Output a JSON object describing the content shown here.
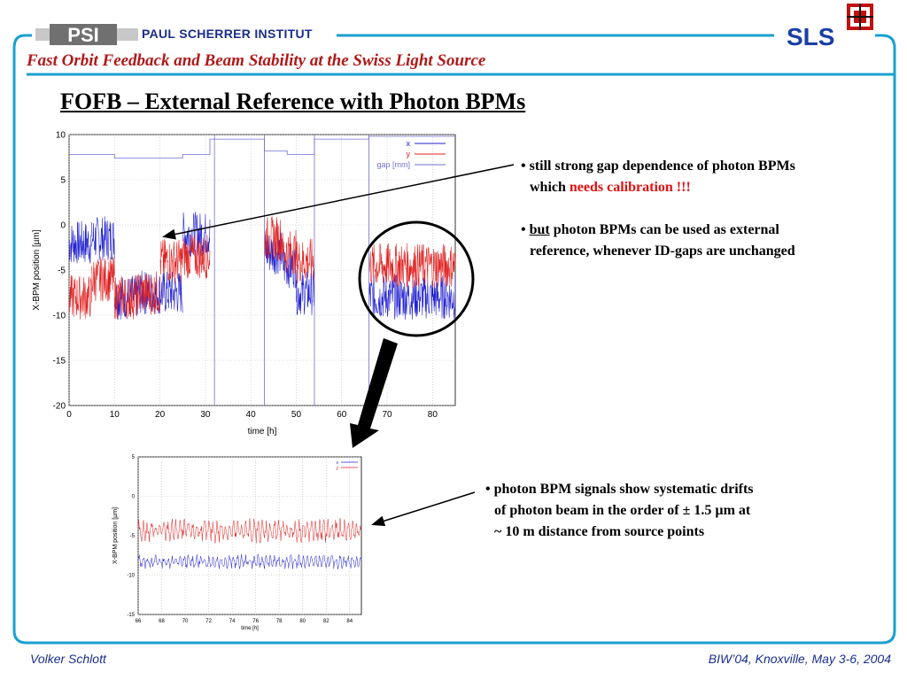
{
  "header": {
    "logo_text": "PSI",
    "org": "PAUL SCHERRER INSTITUT",
    "sls": "SLS",
    "subtitle": "Fast Orbit Feedback and Beam Stability at the Swiss Light Source"
  },
  "slide": {
    "title": "FOFB – External Reference with Photon BPMs"
  },
  "bullets": {
    "b1_line1": "still strong gap dependence of photon BPMs",
    "b1_line2_pre": "which ",
    "b1_line2_red": "needs calibration !!!",
    "b2_underlined": "but",
    "b2_line1_rest": " photon BPMs can be used as external",
    "b2_line2": "reference, whenever ID-gaps are unchanged",
    "b3_line1": "photon BPM signals show systematic drifts",
    "b3_line2": "of photon beam in the order of ± 1.5 µm at",
    "b3_line3": "~ 10 m distance from source points"
  },
  "footer": {
    "author": "Volker Schlott",
    "event": "BIW’04, Knoxville, May 3-6, 2004"
  },
  "chart_data": [
    {
      "type": "line",
      "xlabel": "time [h]",
      "ylabel": "X-BPM position [µm]",
      "xlim": [
        0,
        85
      ],
      "ylim": [
        -20,
        10
      ],
      "xticks": [
        0,
        10,
        20,
        30,
        40,
        50,
        60,
        70,
        80
      ],
      "yticks": [
        10,
        5,
        0,
        -5,
        -10,
        -15,
        -20
      ],
      "grid": true,
      "legend": "top-right",
      "series": [
        {
          "name": "x",
          "color": "#2020d0",
          "segments": [
            [
              0,
              5,
              -2
            ],
            [
              5,
              10,
              -1.5
            ],
            [
              10,
              15,
              -8
            ],
            [
              15,
              20,
              -7.5
            ],
            [
              20,
              25,
              -7.5
            ],
            [
              25,
              31,
              -1
            ],
            [
              43,
              47,
              -3
            ],
            [
              47,
              50,
              -4.5
            ],
            [
              50,
              54,
              -7.5
            ],
            [
              66,
              85,
              -8
            ]
          ]
        },
        {
          "name": "y",
          "color": "#e02020",
          "segments": [
            [
              0,
              5,
              -8
            ],
            [
              5,
              10,
              -6
            ],
            [
              10,
              15,
              -8
            ],
            [
              15,
              20,
              -7.5
            ],
            [
              20,
              25,
              -4
            ],
            [
              25,
              31,
              -3.5
            ],
            [
              43,
              47,
              -1.5
            ],
            [
              47,
              50,
              -3
            ],
            [
              50,
              54,
              -4
            ],
            [
              66,
              85,
              -4.5
            ]
          ]
        },
        {
          "name": "gap [mm]",
          "color": "#7070d0",
          "steps": [
            [
              0,
              10,
              7.8
            ],
            [
              10,
              25,
              7.4
            ],
            [
              25,
              31,
              7.8
            ],
            [
              31,
              43,
              9.5
            ],
            [
              43,
              48,
              8.2
            ],
            [
              48,
              54,
              7.8
            ],
            [
              54,
              66,
              9.5
            ],
            [
              66,
              85,
              9.8
            ]
          ],
          "vlines": [
            32,
            43,
            54,
            66
          ]
        }
      ]
    },
    {
      "type": "line",
      "xlabel": "time [h]",
      "ylabel": "X-BPM position [µm]",
      "xlim": [
        66,
        85
      ],
      "ylim": [
        -15,
        5
      ],
      "xticks": [
        66,
        68,
        70,
        72,
        74,
        76,
        78,
        80,
        82,
        84
      ],
      "yticks": [
        5,
        0,
        -5,
        -10,
        -15
      ],
      "grid": true,
      "legend": "top-right",
      "series": [
        {
          "name": "x",
          "color": "#2020d0",
          "mean": -8.3,
          "amp": 0.9
        },
        {
          "name": "y",
          "color": "#e02020",
          "mean": -4.4,
          "amp": 1.5
        }
      ]
    }
  ]
}
